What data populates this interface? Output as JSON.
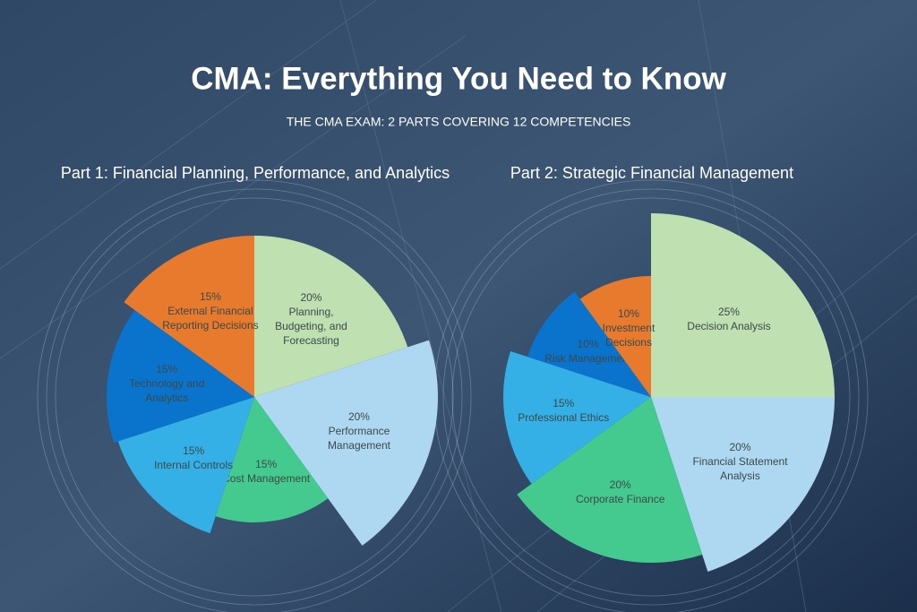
{
  "title": "CMA: Everything You Need to Know",
  "subtitle": "THE CMA EXAM: 2 PARTS COVERING 12 COMPETENCIES",
  "chart_data": [
    {
      "type": "pie",
      "title": "Part 1: Financial Planning, Performance, and Analytics",
      "categories": [
        "Planning, Budgeting, and Forecasting",
        "Performance Management",
        "Cost Management",
        "Internal Controls",
        "Technology and Analytics",
        "External Financial Reporting Decisions"
      ],
      "values": [
        20,
        20,
        15,
        15,
        15,
        15
      ],
      "value_labels": [
        "20%",
        "20%",
        "15%",
        "15%",
        "15%",
        "15%"
      ],
      "colors": [
        "#bfe0b0",
        "#aed8f2",
        "#44c98f",
        "#35b0e6",
        "#0a73cc",
        "#e87a2d"
      ]
    },
    {
      "type": "pie",
      "title": "Part 2: Strategic Financial Management",
      "categories": [
        "Decision Analysis",
        "Financial Statement Analysis",
        "Corporate Finance",
        "Professional Ethics",
        "Risk Management",
        "Investment Decisions"
      ],
      "values": [
        25,
        20,
        20,
        15,
        10,
        10
      ],
      "value_labels": [
        "25%",
        "20%",
        "20%",
        "15%",
        "10%",
        "10%"
      ],
      "colors": [
        "#bfe0b0",
        "#aed8f2",
        "#44c98f",
        "#35b0e6",
        "#0a73cc",
        "#e87a2d"
      ]
    }
  ]
}
